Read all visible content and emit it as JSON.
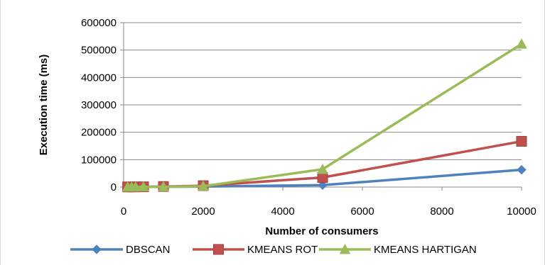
{
  "chart_data": {
    "type": "line",
    "title": "",
    "xlabel": "Number of consumers",
    "ylabel": "Execution time (ms)",
    "xlim": [
      0,
      10000
    ],
    "ylim": [
      0,
      600000
    ],
    "x_ticks": [
      "0",
      "2000",
      "4000",
      "6000",
      "8000",
      "10000"
    ],
    "y_ticks": [
      "0",
      "100000",
      "200000",
      "300000",
      "400000",
      "500000",
      "600000"
    ],
    "grid": "horizontal",
    "legend_position": "bottom",
    "series": [
      {
        "name": "DBSCAN",
        "color": "#4f81bd",
        "marker": "diamond",
        "x": [
          100,
          200,
          300,
          500,
          1000,
          2000,
          5000,
          10000
        ],
        "y": [
          200,
          300,
          400,
          600,
          1000,
          2000,
          7000,
          63000
        ]
      },
      {
        "name": "KMEANS ROT",
        "color": "#c0504d",
        "marker": "square",
        "x": [
          100,
          200,
          300,
          500,
          1000,
          2000,
          5000,
          10000
        ],
        "y": [
          500,
          600,
          800,
          1000,
          2000,
          5000,
          35000,
          167000
        ]
      },
      {
        "name": "KMEANS HARTIGAN",
        "color": "#9bbb59",
        "marker": "triangle",
        "x": [
          100,
          200,
          300,
          500,
          1000,
          2000,
          5000,
          10000
        ],
        "y": [
          300,
          400,
          500,
          800,
          1000,
          3000,
          65000,
          522000
        ]
      }
    ]
  }
}
